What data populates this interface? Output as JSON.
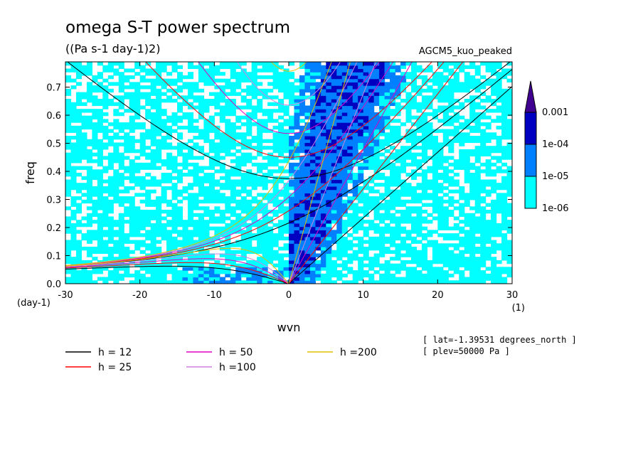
{
  "chart_data": {
    "type": "heatmap",
    "title": "omega S-T power spectrum",
    "subtitle": "((Pa s-1 day-1)2)",
    "model_label": "AGCM5_kuo_peaked",
    "xlabel": "wvn",
    "ylabel": "freq",
    "x_unit": "(1)",
    "y_unit": "(day-1)",
    "xlim": [
      -30,
      30
    ],
    "ylim": [
      0,
      0.79
    ],
    "x_ticks": [
      -30,
      -20,
      -10,
      0,
      10,
      20,
      30
    ],
    "x_tick_labels": [
      "-30",
      "-20",
      "-10",
      "0",
      "10",
      "20",
      "30"
    ],
    "y_ticks": [
      0,
      0.1,
      0.2,
      0.3,
      0.4,
      0.5,
      0.6,
      0.7
    ],
    "y_tick_labels": [
      "0.0",
      "0.1",
      "0.2",
      "0.3",
      "0.4",
      "0.5",
      "0.6",
      "0.7"
    ],
    "colorbar": {
      "levels": [
        1e-06,
        1e-05,
        0.0001,
        0.001
      ],
      "labels": [
        "1e-06",
        "1e-05",
        "1e-04",
        "0.001"
      ],
      "colors": [
        "#00ffff",
        "#0080ff",
        "#0000c0",
        "#400090"
      ]
    },
    "info_lines": [
      "[ lat=-1.39531 degrees_north ]",
      "[ plev=50000 Pa ]"
    ],
    "dispersion_curves": [
      {
        "name": "h = 12",
        "h": 12,
        "color": "#000000"
      },
      {
        "name": "h = 25",
        "h": 25,
        "color": "#ff0000"
      },
      {
        "name": "h = 50",
        "h": 50,
        "color": "#e000c0"
      },
      {
        "name": "h =100",
        "h": 100,
        "color": "#d080e0"
      },
      {
        "name": "h =200",
        "h": 200,
        "color": "#e0c000"
      }
    ],
    "grid": false
  }
}
